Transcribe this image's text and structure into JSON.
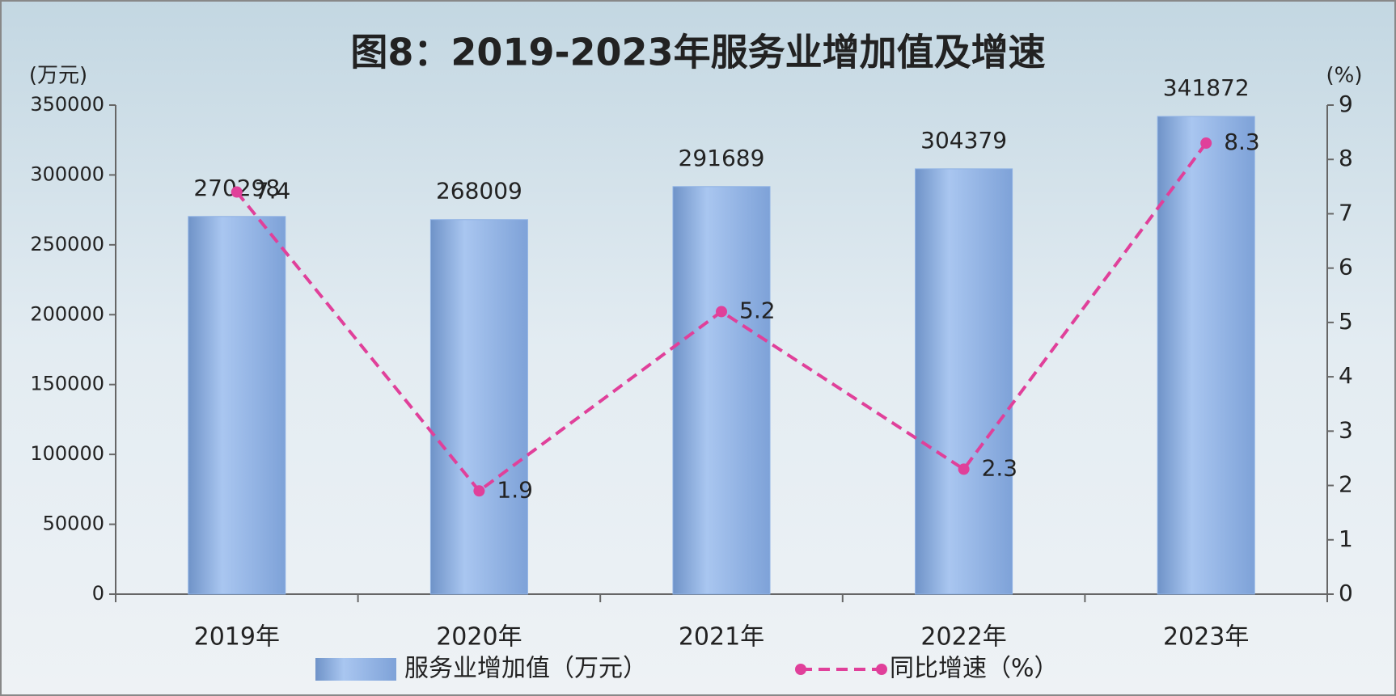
{
  "chart_data": {
    "type": "combo",
    "title": "图8：2019-2023年服务业增加值及增速",
    "y_label": "(万元)",
    "y2_label": "(%)",
    "categories": [
      "2019年",
      "2020年",
      "2021年",
      "2022年",
      "2023年"
    ],
    "series": [
      {
        "name": "服务业增加值（万元）",
        "type": "bar",
        "color": "#8eb1e4",
        "values": [
          270298,
          268009,
          291689,
          304379,
          341872
        ]
      },
      {
        "name": "同比增速（%）",
        "type": "line",
        "axis": "y2",
        "color": "#e0409a",
        "values": [
          7.4,
          1.9,
          5.2,
          2.3,
          8.3
        ]
      }
    ],
    "ylim": [
      0,
      350000
    ],
    "yticks": [
      0,
      50000,
      100000,
      150000,
      200000,
      250000,
      300000,
      350000
    ],
    "y2lim": [
      0,
      9
    ],
    "y2ticks": [
      0,
      1,
      2,
      3,
      4,
      5,
      6,
      7,
      8,
      9
    ],
    "legend": "bottom"
  }
}
